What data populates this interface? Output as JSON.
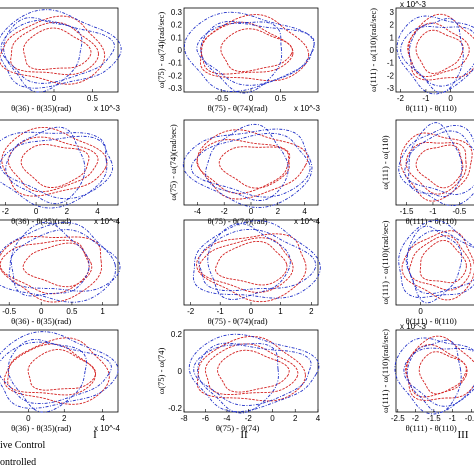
{
  "figure": {
    "legend": [
      "ive Control",
      "ontrolled"
    ],
    "columns": [
      "I",
      "II",
      "III"
    ]
  },
  "colors": {
    "controlled": "#d42020",
    "uncontrolled": "#2030c8"
  },
  "chart_data": [
    {
      "type": "line",
      "panel": "I-1",
      "xlabel": "θ(36) - θ(35)(rad)",
      "ylabel": "",
      "exponent_x": "x 10^-3",
      "exponent_y": "",
      "x_ticks": [
        "0",
        "0.5"
      ],
      "y_ticks": [],
      "xlim": [
        -1.8,
        1.0
      ],
      "ylim": [
        -1,
        1
      ],
      "grid": false
    },
    {
      "type": "line",
      "panel": "II-1",
      "xlabel": "θ(75) - θ(74)(rad)",
      "ylabel": "ω(75) - ω(74)(rad/sec)",
      "exponent_x": "x 10^-3",
      "exponent_y": "",
      "x_ticks": [
        "-0.5",
        "0",
        "0.5"
      ],
      "y_ticks": [
        "-0.3",
        "-0.2",
        "-0.1",
        "0",
        "0.1",
        "0.2",
        "0.3"
      ],
      "xlim": [
        -1,
        1
      ],
      "ylim": [
        -0.3,
        0.3
      ],
      "grid": false
    },
    {
      "type": "line",
      "panel": "III-1",
      "xlabel": "θ(111) - θ(110)",
      "ylabel": "ω(111) - ω(110)(rad/sec)",
      "exponent_x": "",
      "exponent_y": "x 10^-3",
      "x_ticks": [
        "-2",
        "-1",
        "0"
      ],
      "y_ticks": [
        "-3",
        "-2",
        "-1",
        "0",
        "1",
        "2",
        "3"
      ],
      "xlim": [
        -2,
        1
      ],
      "ylim": [
        -3,
        3
      ],
      "grid": false
    },
    {
      "type": "line",
      "panel": "I-2",
      "xlabel": "θ(36) - θ(35)(rad)",
      "ylabel": "",
      "exponent_x": "x 10^-4",
      "exponent_y": "",
      "x_ticks": [
        "-2",
        "0",
        "2",
        "4"
      ],
      "y_ticks": [],
      "xlim": [
        -3,
        6
      ],
      "ylim": [
        -1,
        1
      ],
      "grid": false
    },
    {
      "type": "line",
      "panel": "II-2",
      "xlabel": "θ(75) - θ(74)(rad)",
      "ylabel": "ω(75) - ω(74)(rad/sec)",
      "exponent_x": "x 10^-4",
      "exponent_y": "",
      "x_ticks": [
        "-4",
        "-2",
        "0",
        "2",
        "4"
      ],
      "y_ticks": [],
      "xlim": [
        -5,
        5
      ],
      "ylim": [
        -1,
        1
      ],
      "grid": false
    },
    {
      "type": "line",
      "panel": "III-2",
      "xlabel": "θ(111) - θ(110)",
      "ylabel": "ω(111) - ω(110)",
      "exponent_x": "",
      "exponent_y": "",
      "x_ticks": [
        "-1.5",
        "-1",
        "-0.5"
      ],
      "y_ticks": [],
      "xlim": [
        -1.7,
        0
      ],
      "ylim": [
        -1,
        1
      ],
      "grid": false
    },
    {
      "type": "line",
      "panel": "I-3",
      "xlabel": "θ(36) - θ(35)(rad)",
      "ylabel": "",
      "exponent_x": "",
      "exponent_y": "",
      "x_ticks": [
        "-0.5",
        "0",
        "0.5",
        "1"
      ],
      "y_ticks": [],
      "xlim": [
        -1.4,
        1.4
      ],
      "ylim": [
        -1,
        1
      ],
      "grid": false
    },
    {
      "type": "line",
      "panel": "II-3",
      "xlabel": "θ(75) - θ(74)(rad)",
      "ylabel": "",
      "exponent_x": "",
      "exponent_y": "",
      "x_ticks": [
        "-2",
        "-1",
        "0",
        "1",
        "2"
      ],
      "y_ticks": [],
      "xlim": [
        -2,
        2
      ],
      "ylim": [
        -1,
        1
      ],
      "grid": false
    },
    {
      "type": "line",
      "panel": "III-3",
      "xlabel": "θ(111) - θ(110)",
      "ylabel": "ω(111) - ω(110)(rad/sec)",
      "exponent_x": "",
      "exponent_y": "",
      "x_ticks": [
        "0",
        "1"
      ],
      "y_ticks": [],
      "xlim": [
        -1,
        1.4
      ],
      "ylim": [
        -1,
        1
      ],
      "grid": false
    },
    {
      "type": "line",
      "panel": "I-4",
      "xlabel": "θ(36) - θ(35)(rad)",
      "ylabel": "",
      "exponent_x": "x 10^-4",
      "exponent_y": "",
      "x_ticks": [
        "0",
        "2",
        "4"
      ],
      "y_ticks": [],
      "xlim": [
        -1.6,
        4
      ],
      "ylim": [
        -1,
        1
      ],
      "grid": false
    },
    {
      "type": "line",
      "panel": "II-4",
      "xlabel": "θ(75) - θ(74)",
      "ylabel": "ω(75) - ω(74)",
      "exponent_x": "",
      "exponent_y": "",
      "x_ticks": [
        "-8",
        "-6",
        "-4",
        "-2",
        "0",
        "2",
        "4"
      ],
      "y_ticks": [
        "-0.2",
        "0",
        "0.2"
      ],
      "xlim": [
        -8,
        4
      ],
      "ylim": [
        -0.3,
        0.3
      ],
      "grid": false
    },
    {
      "type": "line",
      "panel": "III-4",
      "xlabel": "θ(111) - θ(110)",
      "ylabel": "ω(111) - ω(110)(rad/sec)",
      "exponent_x": "",
      "exponent_y": "x 10^-3",
      "x_ticks": [
        "-2.5",
        "-2",
        "-1.5",
        "-1",
        "-0.5"
      ],
      "y_ticks": [],
      "xlim": [
        -2.6,
        -0.3
      ],
      "ylim": [
        -3,
        3
      ],
      "grid": false
    }
  ]
}
